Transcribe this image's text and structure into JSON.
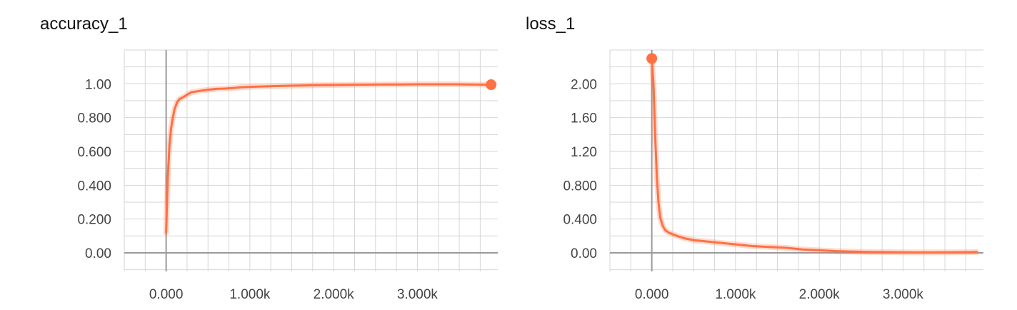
{
  "chart_data": [
    {
      "type": "line",
      "title": "accuracy_1",
      "xlabel": "",
      "ylabel": "",
      "xlim": [
        -500,
        3960
      ],
      "ylim": [
        -0.11,
        1.2
      ],
      "grid": true,
      "x_ticks": [
        0,
        1000,
        2000,
        3000
      ],
      "x_tick_labels": [
        "0.000",
        "1.000k",
        "2.000k",
        "3.000k"
      ],
      "y_ticks": [
        0,
        0.2,
        0.4,
        0.6,
        0.8,
        1.0
      ],
      "y_tick_labels": [
        "0.00",
        "0.200",
        "0.400",
        "0.600",
        "0.800",
        "1.00"
      ],
      "series": [
        {
          "color": "#ff7043",
          "x": [
            0,
            20,
            40,
            60,
            80,
            100,
            130,
            160,
            200,
            250,
            300,
            400,
            500,
            600,
            700,
            800,
            900,
            1000,
            1200,
            1400,
            1600,
            1800,
            2000,
            2200,
            2400,
            2600,
            2800,
            3000,
            3200,
            3400,
            3600,
            3800,
            3880
          ],
          "y": [
            0.12,
            0.45,
            0.64,
            0.74,
            0.8,
            0.85,
            0.89,
            0.91,
            0.92,
            0.935,
            0.95,
            0.958,
            0.965,
            0.97,
            0.972,
            0.975,
            0.98,
            0.982,
            0.985,
            0.988,
            0.99,
            0.992,
            0.993,
            0.994,
            0.995,
            0.996,
            0.996,
            0.997,
            0.997,
            0.997,
            0.996,
            0.995,
            0.995
          ]
        }
      ]
    },
    {
      "type": "line",
      "title": "loss_1",
      "xlabel": "",
      "ylabel": "",
      "xlim": [
        -500,
        3960
      ],
      "ylim": [
        -0.22,
        2.4
      ],
      "grid": true,
      "x_ticks": [
        0,
        1000,
        2000,
        3000
      ],
      "x_tick_labels": [
        "0.000",
        "1.000k",
        "2.000k",
        "3.000k"
      ],
      "y_ticks": [
        0,
        0.4,
        0.8,
        1.2,
        1.6,
        2.0
      ],
      "y_tick_labels": [
        "0.00",
        "0.400",
        "0.800",
        "1.20",
        "1.60",
        "2.00"
      ],
      "series": [
        {
          "color": "#ff7043",
          "x": [
            0,
            20,
            40,
            60,
            80,
            100,
            130,
            160,
            200,
            300,
            400,
            500,
            600,
            800,
            1000,
            1200,
            1400,
            1600,
            1800,
            2000,
            2200,
            2400,
            2600,
            2800,
            3000,
            3200,
            3400,
            3600,
            3800,
            3880
          ],
          "y": [
            2.3,
            2.0,
            1.4,
            0.9,
            0.6,
            0.42,
            0.32,
            0.27,
            0.24,
            0.2,
            0.17,
            0.15,
            0.14,
            0.12,
            0.1,
            0.08,
            0.07,
            0.06,
            0.04,
            0.03,
            0.02,
            0.015,
            0.01,
            0.008,
            0.006,
            0.005,
            0.005,
            0.006,
            0.008,
            0.01
          ]
        }
      ]
    }
  ]
}
